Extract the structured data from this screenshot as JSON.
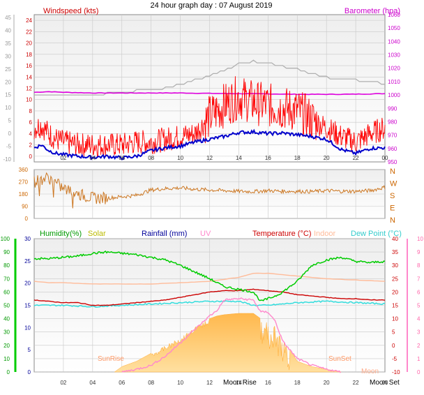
{
  "title": "24 hour graph day : 07 August 2019",
  "colors": {
    "windspeed": "#ff0000",
    "windgust": "#ff0000",
    "windavg": "#0000cc",
    "barometer": "#dd00dd",
    "baro_label": "#cc00cc",
    "gray_trace": "#b0b0b0",
    "direction": "#cc7722",
    "humidity": "#00cc00",
    "humidity_label": "#009900",
    "solar": "#ffbb33",
    "solar_label": "#bbbb00",
    "rainfall": "#000099",
    "uv": "#ff88cc",
    "temperature": "#cc0000",
    "indoor": "#ffbb99",
    "dewpoint": "#33dddd",
    "sunrise": "#ff9966",
    "moon": "#ffaa88",
    "grid": "#c8c8c8",
    "plot_bg_top": "#eeeeee",
    "plot_bg_bottom": "#ffffff"
  },
  "chart_data": [
    {
      "type": "line",
      "name": "wind-baro",
      "labels": {
        "left": "Windspeed (kts)",
        "right": "Barometer (hpa)"
      },
      "x_ticks": [
        "02",
        "04",
        "06",
        "08",
        "10",
        "12",
        "14",
        "16",
        "18",
        "20",
        "22",
        "00"
      ],
      "xlim": [
        0,
        24
      ],
      "ylim_kts": [
        -1,
        25
      ],
      "y_ticks_kts_inner": [
        "24",
        "22",
        "20",
        "18",
        "16",
        "14",
        "12",
        "10",
        "8",
        "6",
        "4",
        "2",
        "0"
      ],
      "y_ticks_kts_outer": [
        "45",
        "40",
        "35",
        "30",
        "25",
        "20",
        "15",
        "10",
        "5",
        "0",
        "-5",
        "-10"
      ],
      "ylim_hpa": [
        950,
        1060
      ],
      "y_ticks_hpa": [
        "1060",
        "1050",
        "1040",
        "1030",
        "1020",
        "1010",
        "1000",
        "990",
        "980",
        "970",
        "960",
        "950"
      ],
      "series": [
        {
          "key": "gust",
          "x": [
            0,
            0.5,
            1,
            1.5,
            2,
            3,
            4,
            5,
            6,
            7,
            8,
            9,
            10,
            11,
            12,
            13,
            14,
            15,
            16,
            17,
            18,
            19,
            20,
            21,
            22,
            23,
            24
          ],
          "y": [
            5,
            5.5,
            4,
            3,
            2.5,
            2,
            2,
            2,
            2,
            2.5,
            2.5,
            3,
            3.5,
            4,
            7,
            9,
            10.5,
            9.5,
            9,
            8.5,
            8,
            6.5,
            5,
            3.5,
            2.5,
            4,
            5
          ]
        },
        {
          "key": "avg",
          "x": [
            0,
            0.5,
            1,
            1.5,
            2,
            3,
            4,
            5,
            6,
            7,
            8,
            9,
            10,
            11,
            12,
            13,
            14,
            15,
            16,
            17,
            18,
            19,
            20,
            21,
            22,
            23,
            24
          ],
          "y": [
            1.5,
            2,
            1,
            0.5,
            0.3,
            0,
            -0.2,
            0,
            -0.3,
            0,
            1,
            1.5,
            1.8,
            2.5,
            3,
            3.5,
            4.2,
            4.3,
            4,
            4.1,
            3.8,
            3.5,
            3,
            1.2,
            0.5,
            1.4,
            1.5
          ]
        },
        {
          "key": "gray",
          "x": [
            0,
            4,
            6,
            8,
            9,
            10,
            11,
            12,
            13,
            14,
            15,
            16,
            17,
            18,
            19,
            20,
            21,
            22,
            23,
            24
          ],
          "y_hpa": [
            1000,
            1000,
            1002,
            1004,
            1005,
            1008,
            1011,
            1014,
            1018,
            1023,
            1025,
            1024,
            1021,
            1019,
            1016,
            1013,
            1012,
            1011,
            1010,
            1008
          ]
        },
        {
          "key": "baro",
          "x": [
            0,
            1,
            2,
            4,
            6,
            8,
            10,
            12,
            14,
            16,
            18,
            20,
            22,
            24
          ],
          "y_hpa": [
            1002,
            1002.5,
            1002,
            1001.5,
            1001.5,
            1001.5,
            1001.5,
            1001.2,
            1001,
            1000.8,
            1000.5,
            1000.5,
            1000.6,
            1001
          ]
        }
      ]
    },
    {
      "type": "line",
      "name": "wind-direction",
      "x_ticks": [
        "02",
        "04",
        "06",
        "08",
        "10",
        "12",
        "14",
        "16",
        "18",
        "20",
        "22",
        "00"
      ],
      "xlim": [
        0,
        24
      ],
      "ylim": [
        0,
        360
      ],
      "y_ticks": [
        "360",
        "270",
        "180",
        "90",
        "0"
      ],
      "compass": [
        "N",
        "W",
        "S",
        "E",
        "N"
      ],
      "series": [
        {
          "key": "direction",
          "x": [
            0,
            0.5,
            1,
            1.5,
            2,
            3,
            4,
            5,
            6,
            7,
            8,
            9,
            10,
            11,
            12,
            13,
            14,
            15,
            16,
            17,
            18,
            19,
            20,
            21,
            22,
            23,
            24
          ],
          "y": [
            270,
            290,
            300,
            260,
            220,
            180,
            150,
            150,
            160,
            170,
            210,
            220,
            225,
            215,
            210,
            205,
            200,
            198,
            205,
            200,
            200,
            198,
            205,
            200,
            200,
            205,
            230
          ]
        }
      ]
    },
    {
      "type": "line",
      "name": "temp-humidity",
      "labels": {
        "humidity": "Humidity",
        "humidity_unit": "(%)",
        "solar": "Solar",
        "rainfall": "Rainfall (mm)",
        "uv": "UV",
        "temperature": "Temperature (°C)",
        "indoor": "Indoor",
        "dewpoint": "Dew Point (°C)",
        "sunrise": "SunRise",
        "sunset": "SunSet",
        "moon_rise": "Moon Rise",
        "moon_set": "Moon Set",
        "moon_right": "Moon"
      },
      "x_ticks": [
        "02",
        "04",
        "06",
        "08",
        "10",
        "12",
        "14",
        "16",
        "18",
        "20",
        "22",
        "00"
      ],
      "xlim": [
        0,
        24
      ],
      "ylim_temp": [
        -10,
        40
      ],
      "y_ticks_humidity": [
        "100",
        "90",
        "80",
        "70",
        "60",
        "50",
        "40",
        "30",
        "20",
        "10",
        "0"
      ],
      "y_ticks_rain": [
        "30",
        "25",
        "20",
        "15",
        "10",
        "5",
        "0"
      ],
      "y_ticks_temp": [
        "40",
        "35",
        "30",
        "25",
        "20",
        "15",
        "10",
        "5",
        "0",
        "-5",
        "-10"
      ],
      "y_ticks_uv": [
        "10",
        "9",
        "8",
        "7",
        "6",
        "5",
        "4",
        "3",
        "2",
        "1",
        "0"
      ],
      "series": [
        {
          "key": "humidity",
          "x": [
            0,
            1,
            2,
            3,
            4,
            5,
            6,
            7,
            8,
            9,
            10,
            11,
            12,
            13,
            14,
            15,
            15.5,
            16,
            16.5,
            17,
            18,
            19,
            20,
            21,
            22,
            23,
            24
          ],
          "y": [
            85,
            85,
            86,
            87,
            89,
            90,
            89,
            88,
            86,
            84,
            80,
            75,
            70,
            64,
            62,
            60,
            53,
            55,
            57,
            60,
            68,
            80,
            84,
            86,
            83,
            82,
            83
          ]
        },
        {
          "key": "temperature",
          "x": [
            0,
            1,
            2,
            3,
            4,
            5,
            6,
            7,
            8,
            9,
            10,
            11,
            12,
            13,
            14,
            15,
            16,
            17,
            18,
            19,
            20,
            21,
            22,
            23,
            24
          ],
          "y": [
            17,
            16.5,
            16,
            16,
            15,
            15,
            15.5,
            16,
            16.5,
            17,
            18,
            19,
            20,
            20.5,
            20.5,
            21,
            20.5,
            20,
            19,
            18.5,
            18,
            17.5,
            17.5,
            17,
            17
          ]
        },
        {
          "key": "indoor",
          "x": [
            0,
            1,
            2,
            4,
            6,
            8,
            10,
            12,
            14,
            15,
            16,
            17,
            18,
            20,
            22,
            24
          ],
          "y": [
            24,
            23.5,
            23.5,
            23,
            23,
            23,
            23.5,
            24,
            25.5,
            27,
            27,
            26.5,
            26,
            25,
            24.5,
            24
          ]
        },
        {
          "key": "dewpoint",
          "x": [
            0,
            1,
            2,
            4,
            6,
            8,
            10,
            12,
            14,
            15,
            16,
            17,
            18,
            20,
            22,
            24
          ],
          "y": [
            15,
            15,
            15,
            14.5,
            15,
            15.5,
            16,
            16.5,
            16.5,
            15,
            15,
            15.5,
            16,
            16.5,
            16,
            15.5
          ]
        },
        {
          "key": "uv",
          "x": [
            6,
            7,
            8,
            9,
            10,
            11,
            12,
            12.5,
            13,
            14,
            15,
            15.5,
            16,
            16.5,
            17,
            18,
            19,
            20,
            21
          ],
          "y": [
            0,
            0.2,
            0.5,
            1.2,
            2.2,
            3.2,
            4.2,
            4.6,
            5.4,
            5.5,
            5.4,
            4.5,
            4.5,
            3.8,
            2.3,
            1,
            0.5,
            0.2,
            0
          ]
        },
        {
          "key": "solar",
          "x": [
            5.5,
            6,
            7,
            8,
            9,
            10,
            11,
            12,
            12.5,
            13,
            14,
            15,
            15.5,
            16,
            16.5,
            17,
            18,
            19,
            20,
            21
          ],
          "y_temp": [
            -10,
            -8,
            -6,
            -3,
            0,
            3,
            7,
            10,
            11,
            11.5,
            12,
            12,
            10,
            9,
            7,
            3,
            -6,
            -8,
            -9,
            -10
          ]
        }
      ]
    }
  ]
}
